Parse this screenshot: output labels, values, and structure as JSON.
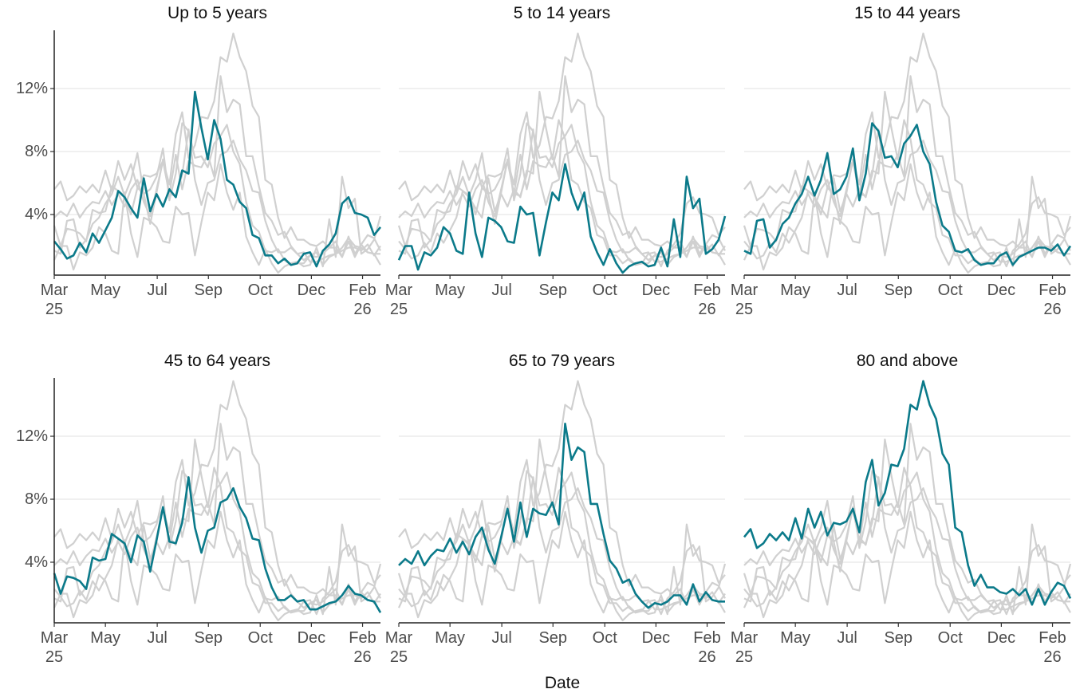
{
  "chart_data": {
    "type": "line",
    "x_label": "Date",
    "x": [
      0,
      1,
      2,
      3,
      4,
      5,
      6,
      7,
      8,
      9,
      10,
      11,
      12,
      13,
      14,
      15,
      16,
      17,
      18,
      19,
      20,
      21,
      22,
      23,
      24,
      25,
      26,
      27,
      28,
      29,
      30,
      31,
      32,
      33,
      34,
      35,
      36,
      37,
      38,
      39,
      40,
      41,
      42,
      43,
      44,
      45,
      46,
      47,
      48,
      49,
      50,
      51
    ],
    "xlim": [
      0,
      51
    ],
    "xticks": [
      {
        "value": 0,
        "label": "Mar\n25"
      },
      {
        "value": 8,
        "label": "May"
      },
      {
        "value": 16.1,
        "label": "Jul"
      },
      {
        "value": 24.1,
        "label": "Sep"
      },
      {
        "value": 32.2,
        "label": "Oct"
      },
      {
        "value": 40.2,
        "label": "Dec"
      },
      {
        "value": 48.2,
        "label": "Feb\n26"
      }
    ],
    "ylim": [
      0.15,
      15.7
    ],
    "yticks": [
      {
        "value": 4,
        "label": "4%"
      },
      {
        "value": 8,
        "label": "8%"
      },
      {
        "value": 12,
        "label": "12%"
      }
    ],
    "grid": true,
    "color": "#0b7a8a",
    "context_color": "#d0d0d0",
    "series": [
      {
        "name": "Up to 5 years",
        "values": [
          2.3,
          1.8,
          1.2,
          1.4,
          2.2,
          1.6,
          2.8,
          2.2,
          3.0,
          3.8,
          5.5,
          5.1,
          4.4,
          3.8,
          6.3,
          4.2,
          5.3,
          4.5,
          5.6,
          5.1,
          6.8,
          6.6,
          11.8,
          9.5,
          7.5,
          10.0,
          8.8,
          6.2,
          5.9,
          4.8,
          4.4,
          2.7,
          2.5,
          1.4,
          1.4,
          0.9,
          1.2,
          0.8,
          0.9,
          1.5,
          1.6,
          0.7,
          1.7,
          2.1,
          2.8,
          4.7,
          5.1,
          4.1,
          4.0,
          3.8,
          2.7,
          3.2
        ]
      },
      {
        "name": "5 to 14 years",
        "values": [
          1.1,
          2.0,
          2.0,
          0.5,
          1.6,
          1.4,
          1.9,
          3.2,
          2.8,
          1.7,
          1.5,
          5.4,
          2.8,
          1.3,
          3.8,
          3.6,
          3.2,
          2.3,
          2.2,
          4.5,
          4.0,
          4.1,
          1.4,
          3.5,
          5.4,
          4.9,
          7.2,
          5.4,
          4.3,
          5.4,
          2.6,
          1.6,
          0.8,
          1.8,
          0.9,
          0.3,
          0.7,
          0.9,
          1.0,
          0.7,
          0.8,
          1.9,
          0.7,
          3.7,
          1.3,
          6.4,
          4.4,
          5.0,
          1.5,
          1.8,
          2.4,
          3.9
        ]
      },
      {
        "name": "15 to 44 years",
        "values": [
          1.7,
          1.5,
          3.6,
          3.7,
          1.9,
          2.4,
          3.4,
          3.8,
          4.7,
          5.3,
          6.4,
          5.2,
          6.2,
          7.9,
          5.3,
          5.6,
          6.4,
          8.2,
          4.9,
          6.6,
          9.8,
          9.3,
          7.6,
          7.7,
          7.0,
          8.5,
          9.0,
          9.7,
          8.0,
          7.2,
          4.8,
          3.3,
          2.9,
          1.7,
          1.6,
          1.8,
          1.1,
          0.8,
          0.9,
          0.9,
          1.4,
          1.6,
          0.8,
          1.3,
          1.5,
          1.7,
          1.9,
          1.9,
          1.7,
          2.1,
          1.4,
          2.0
        ]
      },
      {
        "name": "45 to 64 years",
        "values": [
          3.3,
          2.0,
          3.1,
          3.0,
          2.8,
          2.3,
          4.3,
          4.1,
          4.2,
          5.8,
          5.5,
          5.2,
          4.0,
          5.7,
          5.3,
          3.4,
          5.4,
          7.5,
          5.3,
          5.2,
          6.5,
          9.4,
          6.2,
          4.6,
          6.0,
          6.2,
          7.8,
          8.0,
          8.7,
          7.5,
          6.8,
          5.5,
          5.4,
          3.6,
          2.4,
          1.6,
          1.6,
          1.9,
          1.5,
          1.6,
          1.0,
          1.0,
          1.2,
          1.4,
          1.5,
          1.9,
          2.5,
          2.0,
          1.9,
          1.6,
          1.5,
          0.8
        ]
      },
      {
        "name": "65 to 79 years",
        "values": [
          3.8,
          4.2,
          3.9,
          4.7,
          3.8,
          4.4,
          4.8,
          4.7,
          5.5,
          4.6,
          5.3,
          4.5,
          5.6,
          6.2,
          4.8,
          3.9,
          5.6,
          7.4,
          5.3,
          7.8,
          5.6,
          7.4,
          7.1,
          7.0,
          7.8,
          6.4,
          12.8,
          10.5,
          11.3,
          11.0,
          7.7,
          7.7,
          5.8,
          4.1,
          3.6,
          2.7,
          2.9,
          2.0,
          1.5,
          1.1,
          1.4,
          1.3,
          1.5,
          1.9,
          1.9,
          1.3,
          2.6,
          1.5,
          2.1,
          1.6,
          1.5,
          1.5
        ]
      },
      {
        "name": "80 and above",
        "values": [
          5.6,
          6.1,
          4.9,
          5.2,
          5.8,
          5.4,
          5.9,
          5.4,
          6.8,
          5.5,
          7.4,
          6.2,
          7.2,
          5.7,
          6.5,
          6.4,
          6.6,
          7.4,
          5.9,
          9.1,
          10.5,
          7.6,
          8.4,
          10.2,
          10.1,
          11.2,
          14.0,
          13.7,
          15.5,
          14.0,
          13.1,
          10.9,
          10.2,
          6.2,
          5.9,
          3.8,
          2.5,
          3.2,
          2.4,
          2.4,
          2.1,
          2.0,
          2.3,
          1.9,
          2.3,
          1.3,
          2.3,
          1.3,
          2.1,
          2.7,
          2.5,
          1.7
        ]
      }
    ]
  }
}
